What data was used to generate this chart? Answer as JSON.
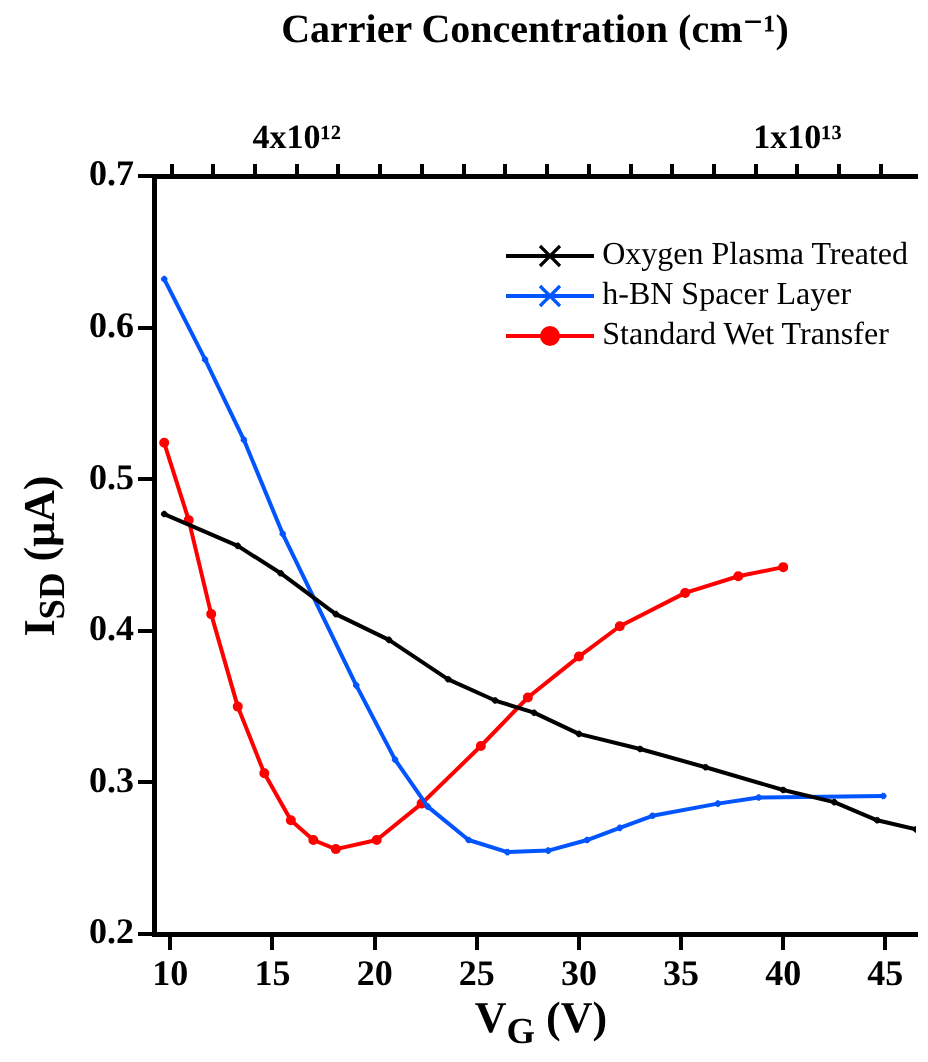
{
  "chart_data": {
    "type": "line",
    "xlabel": "V$_{G}$ (V)",
    "ylabel": "I$_{SD}$ (μA)",
    "x2label": "Carrier Concentration (cm⁻¹)",
    "xlim": [
      9.2,
      46.5
    ],
    "xticks": [
      10,
      15,
      20,
      25,
      30,
      35,
      40,
      45
    ],
    "ylim": [
      0.2,
      0.7
    ],
    "yticks": [
      0.2,
      0.3,
      0.4,
      0.5,
      0.6,
      0.7
    ],
    "x2lim": [
      2290000000000.0,
      11420000000000.0
    ],
    "x2ticks": [
      {
        "value": 2500000000000.0,
        "label": null
      },
      {
        "value": 3000000000000.0,
        "label": null
      },
      {
        "value": 3500000000000.0,
        "label": null
      },
      {
        "value": 4000000000000.0,
        "label": "4x10¹²"
      },
      {
        "value": 4500000000000.0,
        "label": null
      },
      {
        "value": 5000000000000.0,
        "label": null
      },
      {
        "value": 5500000000000.0,
        "label": null
      },
      {
        "value": 6000000000000.0,
        "label": null
      },
      {
        "value": 6500000000000.0,
        "label": null
      },
      {
        "value": 7000000000000.0,
        "label": null
      },
      {
        "value": 7500000000000.0,
        "label": null
      },
      {
        "value": 8000000000000.0,
        "label": null
      },
      {
        "value": 8500000000000.0,
        "label": null
      },
      {
        "value": 9000000000000.0,
        "label": null
      },
      {
        "value": 9500000000000.0,
        "label": null
      },
      {
        "value": 10000000000000.0,
        "label": "1x10¹³"
      },
      {
        "value": 10500000000000.0,
        "label": null
      },
      {
        "value": 11000000000000.0,
        "label": null
      }
    ],
    "grid": false,
    "legend": "top right",
    "line_style": "solid",
    "series": [
      {
        "name": "Oxygen Plasma Treated",
        "color": "#000000",
        "marker": "cross",
        "x": [
          9.7,
          13.3,
          15.4,
          18.1,
          20.7,
          23.6,
          25.9,
          27.8,
          30.0,
          33.0,
          36.2,
          40.0,
          42.5,
          44.6,
          46.5
        ],
        "values": [
          0.477,
          0.456,
          0.438,
          0.411,
          0.394,
          0.368,
          0.354,
          0.346,
          0.332,
          0.322,
          0.31,
          0.295,
          0.287,
          0.275,
          0.269
        ]
      },
      {
        "name": "h-BN Spacer Layer",
        "color": "#0055ff",
        "marker": "cross",
        "x": [
          9.7,
          11.7,
          13.6,
          15.5,
          19.1,
          21.0,
          22.6,
          24.6,
          26.5,
          28.5,
          30.4,
          32.0,
          33.6,
          36.8,
          38.8,
          44.9
        ],
        "values": [
          0.632,
          0.579,
          0.526,
          0.464,
          0.364,
          0.315,
          0.284,
          0.262,
          0.254,
          0.255,
          0.262,
          0.27,
          0.278,
          0.286,
          0.29,
          0.291
        ]
      },
      {
        "name": "Standard Wet Transfer",
        "color": "#ff0000",
        "marker": "circle",
        "x": [
          9.7,
          10.9,
          12.0,
          13.3,
          14.6,
          15.9,
          17.0,
          18.1,
          20.1,
          22.3,
          25.2,
          27.5,
          30.0,
          32.0,
          35.2,
          37.8,
          40.0
        ],
        "values": [
          0.524,
          0.473,
          0.411,
          0.35,
          0.306,
          0.275,
          0.262,
          0.256,
          0.262,
          0.286,
          0.324,
          0.356,
          0.383,
          0.403,
          0.425,
          0.436,
          0.442
        ]
      }
    ]
  }
}
